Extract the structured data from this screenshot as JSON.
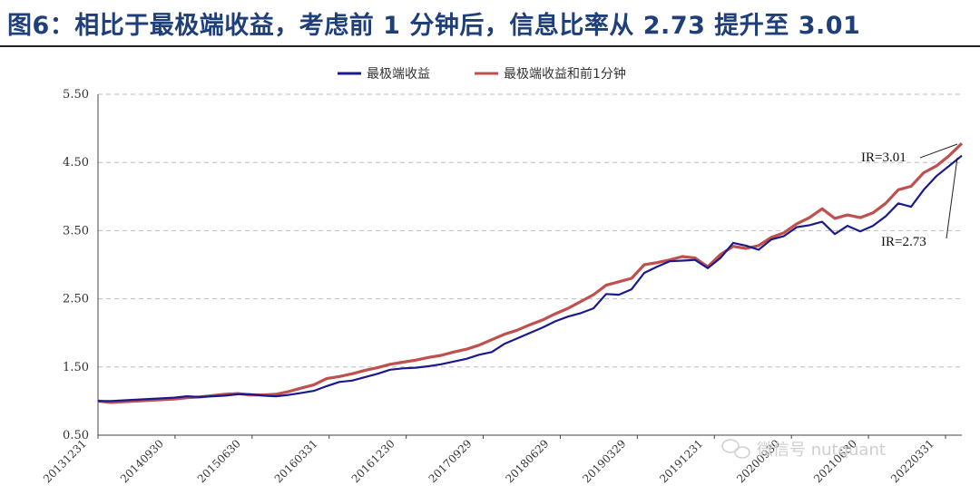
{
  "title": "图6：相比于最极端收益，考虑前 1 分钟后，信息比率从 2.73 提升至 3.01",
  "watermark": "微信号 nutquant",
  "chart_data": {
    "type": "line",
    "title": "相比于最极端收益，考虑前 1 分钟后，信息比率从 2.73 提升至 3.01",
    "ylim": [
      0.5,
      5.5
    ],
    "yticks": [
      "0.50",
      "1.50",
      "2.50",
      "3.50",
      "4.50",
      "5.50"
    ],
    "xticks": [
      "20131231",
      "20140930",
      "20150630",
      "20160331",
      "20161230",
      "20170929",
      "20180629",
      "20190329",
      "20191231",
      "20200930",
      "20210630",
      "20220331"
    ],
    "grid": true,
    "legend": "top-center",
    "series": [
      {
        "name": "最极端收益",
        "color": "#1a1a8c",
        "values": [
          1.0,
          1.0,
          1.01,
          1.02,
          1.03,
          1.04,
          1.05,
          1.07,
          1.06,
          1.07,
          1.08,
          1.1,
          1.1,
          1.08,
          1.07,
          1.09,
          1.12,
          1.15,
          1.22,
          1.28,
          1.3,
          1.35,
          1.4,
          1.46,
          1.48,
          1.49,
          1.51,
          1.54,
          1.58,
          1.62,
          1.68,
          1.72,
          1.84,
          1.92,
          2.0,
          2.08,
          2.17,
          2.24,
          2.29,
          2.36,
          2.57,
          2.56,
          2.64,
          2.88,
          2.97,
          3.05,
          3.06,
          3.07,
          2.95,
          3.1,
          3.32,
          3.28,
          3.22,
          3.37,
          3.42,
          3.55,
          3.58,
          3.63,
          3.45,
          3.57,
          3.49,
          3.57,
          3.71,
          3.9,
          3.85,
          4.1,
          4.3,
          4.45,
          4.6
        ]
      },
      {
        "name": "最极端收益和前1分钟",
        "color": "#c0504d",
        "values": [
          1.0,
          0.98,
          0.99,
          1.0,
          1.01,
          1.02,
          1.03,
          1.05,
          1.06,
          1.08,
          1.1,
          1.11,
          1.09,
          1.09,
          1.1,
          1.14,
          1.19,
          1.24,
          1.33,
          1.36,
          1.4,
          1.45,
          1.49,
          1.54,
          1.57,
          1.6,
          1.64,
          1.67,
          1.72,
          1.76,
          1.82,
          1.9,
          1.98,
          2.04,
          2.12,
          2.19,
          2.28,
          2.36,
          2.46,
          2.56,
          2.7,
          2.75,
          2.8,
          3.0,
          3.03,
          3.07,
          3.12,
          3.1,
          2.97,
          3.15,
          3.27,
          3.24,
          3.28,
          3.4,
          3.47,
          3.6,
          3.69,
          3.82,
          3.68,
          3.73,
          3.69,
          3.76,
          3.9,
          4.1,
          4.15,
          4.35,
          4.45,
          4.6,
          4.78
        ]
      }
    ],
    "annotations": [
      {
        "text": "IR=3.01",
        "series": "最极端收益和前1分钟"
      },
      {
        "text": "IR=2.73",
        "series": "最极端收益"
      }
    ]
  }
}
